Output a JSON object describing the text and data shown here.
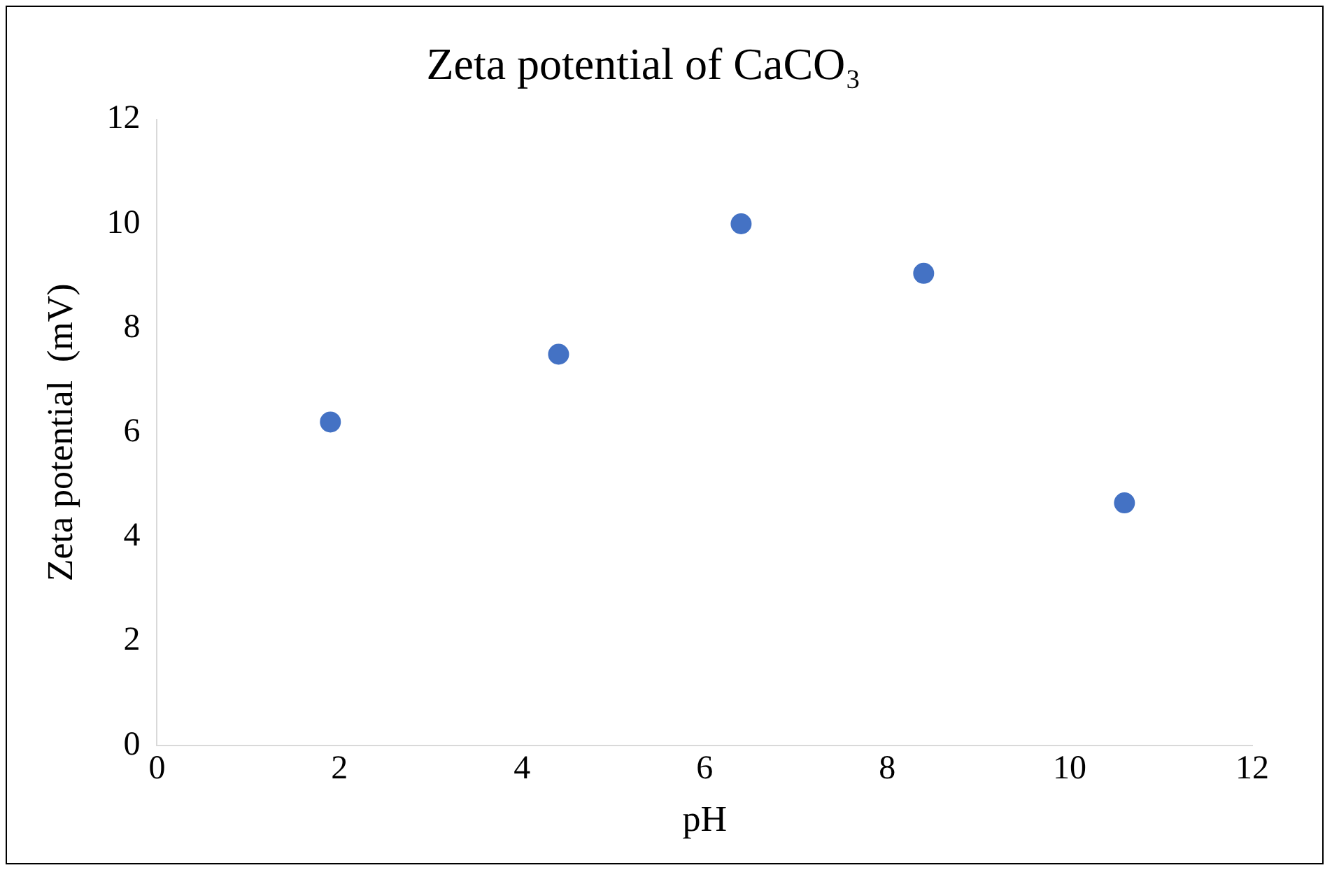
{
  "chart_data": {
    "type": "scatter",
    "title": "Zeta potential of CaCO₃",
    "xlabel": "pH",
    "ylabel": "Zeta potential  (mV)",
    "x": [
      1.9,
      4.4,
      6.4,
      8.4,
      10.6
    ],
    "series": [
      {
        "color": "#4472c4",
        "values": [
          6.2,
          7.5,
          10,
          9.05,
          4.65
        ]
      }
    ],
    "xlim": [
      0,
      12
    ],
    "xticks": [
      0,
      2,
      4,
      6,
      8,
      10,
      12
    ],
    "ylim": [
      0,
      12
    ],
    "yticks": [
      0,
      2,
      4,
      6,
      8,
      10,
      12
    ],
    "grid": false,
    "legend": false,
    "marker": "circle"
  }
}
